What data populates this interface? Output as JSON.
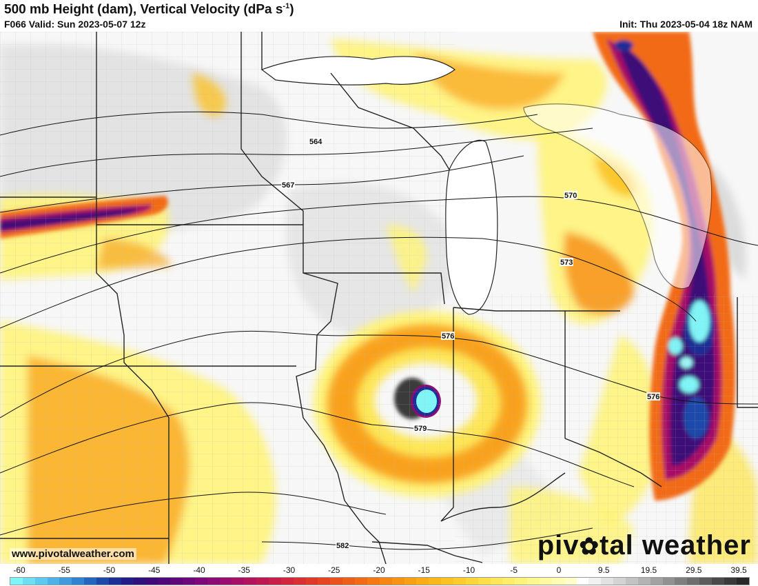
{
  "header": {
    "title": "500 mb Height (dam), Vertical Velocity (dPa s",
    "title_sup": "-1",
    "title_close": ")",
    "valid": "F066 Valid: Sun 2023-05-07 12z",
    "init": "Init: Thu 2023-05-04 18z NAM"
  },
  "map": {
    "region": "Upper Midwest / Great Lakes",
    "contours": [
      {
        "value": "564",
        "label": "564"
      },
      {
        "value": "567",
        "label": "567"
      },
      {
        "value": "570",
        "label": "570"
      },
      {
        "value": "573",
        "label": "573"
      },
      {
        "value": "576",
        "label": "576"
      },
      {
        "value": "579",
        "label": "579"
      },
      {
        "value": "582",
        "label": "582"
      }
    ]
  },
  "footer": {
    "website": "www.pivotalweather.com",
    "brand_left": "piv",
    "brand_gear": "✿",
    "brand_right": "tal weather"
  },
  "colorbar": {
    "labels": [
      "-60",
      "-55",
      "-50",
      "-45",
      "-40",
      "-35",
      "-30",
      "-25",
      "-20",
      "-15",
      "-10",
      "-5",
      "0",
      "9.5",
      "19.5",
      "29.5",
      "39.5"
    ],
    "colors": [
      "#7ff5f7",
      "#6edff3",
      "#5ec9ee",
      "#4fb2e6",
      "#3f9bdc",
      "#2f84cf",
      "#2466bf",
      "#1d49aa",
      "#1b2f95",
      "#231c86",
      "#2e117c",
      "#3d0a78",
      "#4f0879",
      "#5f077a",
      "#6e077b",
      "#7d087a",
      "#8c0a75",
      "#9a0c6e",
      "#a70f66",
      "#b3135c",
      "#be1852",
      "#c81e47",
      "#d1263d",
      "#d92f33",
      "#e0392a",
      "#e64521",
      "#eb511b",
      "#ef5e17",
      "#f26b14",
      "#f57813",
      "#f78512",
      "#f89212",
      "#f99f13",
      "#faab16",
      "#fab71c",
      "#fbc224",
      "#fccc2e",
      "#fcd53a",
      "#fdde48",
      "#fde657",
      "#feed68",
      "#fef37a",
      "#fef78d",
      "#fffaa1",
      "#fffcb6",
      "#fffecb",
      "#ffffff",
      "#f1f1f1",
      "#e2e2e2",
      "#d3d3d3",
      "#c3c3c3",
      "#b3b3b3",
      "#a2a2a2",
      "#919191",
      "#7f7f7f",
      "#6e6e6e",
      "#5c5c5c",
      "#4a4a4a",
      "#393939",
      "#282828"
    ]
  }
}
